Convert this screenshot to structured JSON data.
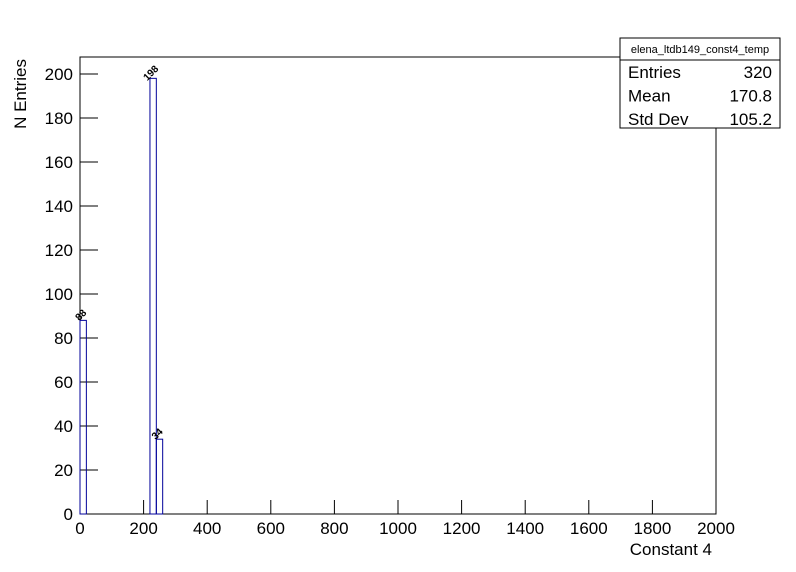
{
  "chart_data": {
    "type": "histogram",
    "xlabel": "Constant 4",
    "ylabel": "N Entries",
    "bins": [
      0,
      20,
      40,
      60,
      80,
      100,
      120,
      140,
      160,
      180,
      200,
      220,
      240,
      260,
      280,
      300,
      320,
      340,
      360,
      380,
      400,
      420,
      440,
      460,
      480,
      500,
      520,
      540,
      560,
      580,
      600,
      620,
      640,
      660,
      680,
      700,
      720,
      740,
      760,
      780,
      800,
      820,
      840,
      860,
      880,
      900,
      920,
      940,
      960,
      980,
      1000,
      1020,
      1040,
      1060,
      1080,
      1100,
      1120,
      1140,
      1160,
      1180,
      1200,
      1220,
      1240,
      1260,
      1280,
      1300,
      1320,
      1340,
      1360,
      1380,
      1400,
      1420,
      1440,
      1460,
      1480,
      1500,
      1520,
      1540,
      1560,
      1580,
      1600,
      1620,
      1640,
      1660,
      1680,
      1700,
      1720,
      1740,
      1760,
      1780,
      1800,
      1820,
      1840,
      1860,
      1880,
      1900,
      1920,
      1940,
      1960,
      1980,
      2000
    ],
    "values": [
      88,
      0,
      0,
      0,
      0,
      0,
      0,
      0,
      0,
      0,
      0,
      198,
      34,
      0,
      0,
      0,
      0,
      0,
      0,
      0,
      0,
      0,
      0,
      0,
      0,
      0,
      0,
      0,
      0,
      0,
      0,
      0,
      0,
      0,
      0,
      0,
      0,
      0,
      0,
      0,
      0,
      0,
      0,
      0,
      0,
      0,
      0,
      0,
      0,
      0,
      0,
      0,
      0,
      0,
      0,
      0,
      0,
      0,
      0,
      0,
      0,
      0,
      0,
      0,
      0,
      0,
      0,
      0,
      0,
      0,
      0,
      0,
      0,
      0,
      0,
      0,
      0,
      0,
      0,
      0,
      0,
      0,
      0,
      0,
      0,
      0,
      0,
      0,
      0,
      0,
      0,
      0,
      0,
      0,
      0,
      0,
      0,
      0,
      0,
      0
    ],
    "color": "#000099",
    "xlim": [
      0,
      2000
    ],
    "xticks": [
      0,
      200,
      400,
      600,
      800,
      1000,
      1200,
      1400,
      1600,
      1800,
      2000
    ],
    "ylim": [
      0,
      207.7
    ],
    "yticks": [
      0,
      20,
      40,
      60,
      80,
      100,
      120,
      140,
      160,
      180,
      200
    ],
    "stats": {
      "title": "elena_ltdb149_const4_temp",
      "rows": [
        {
          "label": "Entries",
          "value": 320
        },
        {
          "label": "Mean",
          "value": 170.8
        },
        {
          "label": "Std Dev",
          "value": 105.2
        }
      ]
    }
  }
}
